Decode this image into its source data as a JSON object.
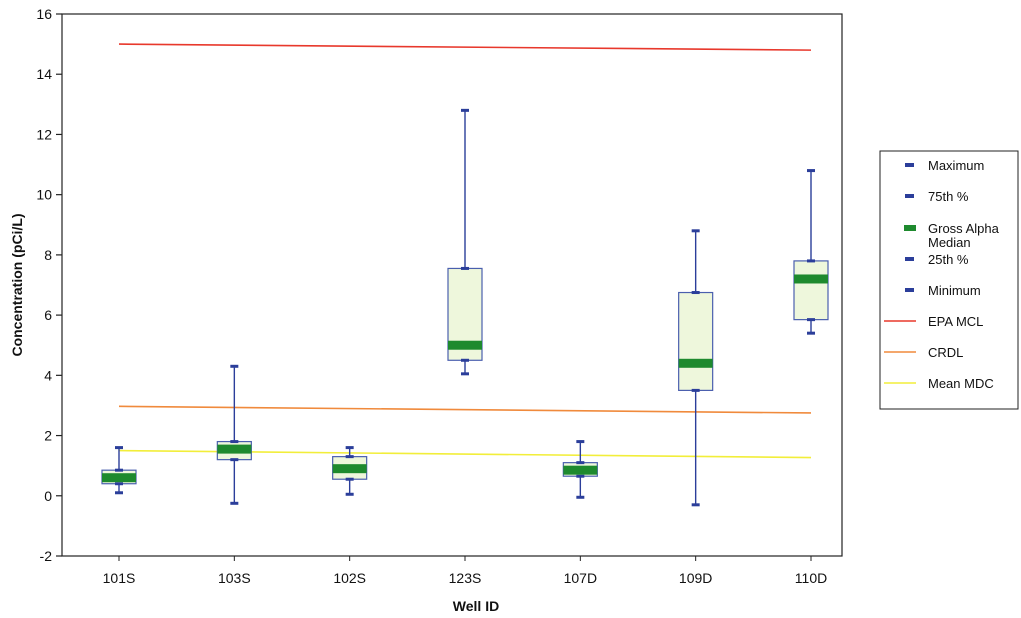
{
  "chart_data": {
    "type": "box",
    "xlabel": "Well ID",
    "ylabel": "Concentration (pCi/L)",
    "ylim": [
      -2,
      16
    ],
    "yticks": [
      "-2",
      "0",
      "2",
      "4",
      "6",
      "8",
      "10",
      "12",
      "14",
      "16"
    ],
    "categories": [
      "101S",
      "103S",
      "102S",
      "123S",
      "107D",
      "109D",
      "110D"
    ],
    "boxes": [
      {
        "well": "101S",
        "min": 0.1,
        "q1": 0.4,
        "median": 0.6,
        "q3": 0.85,
        "max": 1.6
      },
      {
        "well": "103S",
        "min": -0.25,
        "q1": 1.2,
        "median": 1.55,
        "q3": 1.8,
        "max": 4.3
      },
      {
        "well": "102S",
        "min": 0.05,
        "q1": 0.55,
        "median": 0.9,
        "q3": 1.3,
        "max": 1.6
      },
      {
        "well": "123S",
        "min": 4.05,
        "q1": 4.5,
        "median": 5.0,
        "q3": 7.55,
        "max": 12.8
      },
      {
        "well": "107D",
        "min": -0.05,
        "q1": 0.65,
        "median": 0.85,
        "q3": 1.1,
        "max": 1.8
      },
      {
        "well": "109D",
        "min": -0.3,
        "q1": 3.5,
        "median": 4.4,
        "q3": 6.75,
        "max": 8.8
      },
      {
        "well": "110D",
        "min": 5.4,
        "q1": 5.85,
        "median": 7.2,
        "q3": 7.8,
        "max": 10.8
      }
    ],
    "reference_lines": [
      {
        "name": "EPA MCL",
        "start": 15.0,
        "end": 14.8,
        "color": "#e8382c"
      },
      {
        "name": "CRDL",
        "start": 2.97,
        "end": 2.75,
        "color": "#f08a3c"
      },
      {
        "name": "Mean MDC",
        "start": 1.5,
        "end": 1.27,
        "color": "#f2ee3a"
      }
    ],
    "legend": {
      "placement": "right",
      "entries": [
        {
          "label": "Maximum",
          "style": "whisker",
          "color": "#2b3e9a"
        },
        {
          "label": "75th %",
          "style": "whisker",
          "color": "#2b3e9a"
        },
        {
          "label": "Gross Alpha Median",
          "style": "median",
          "color": "#1e8a2e"
        },
        {
          "label": "25th %",
          "style": "whisker",
          "color": "#2b3e9a"
        },
        {
          "label": "Minimum",
          "style": "whisker",
          "color": "#2b3e9a"
        },
        {
          "label": "EPA MCL",
          "style": "line",
          "color": "#e8382c"
        },
        {
          "label": "CRDL",
          "style": "line",
          "color": "#f08a3c"
        },
        {
          "label": "Mean MDC",
          "style": "line",
          "color": "#f2ee3a"
        }
      ]
    },
    "colors": {
      "whisker": "#2b3e9a",
      "box_fill": "#eef7dc",
      "box_stroke": "#4a5fae",
      "median": "#1e8a2e"
    },
    "grid": false
  }
}
